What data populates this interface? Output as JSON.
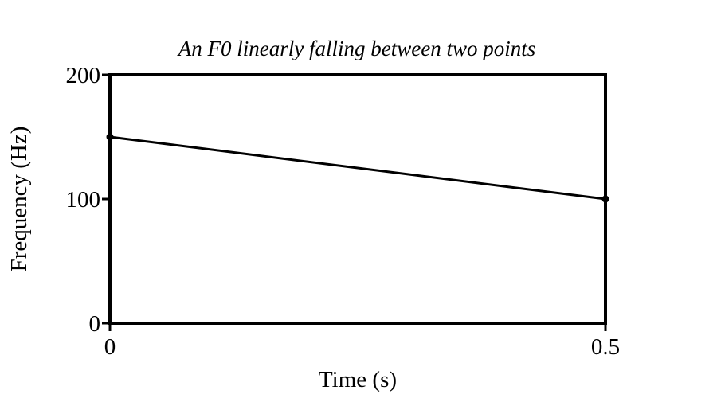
{
  "chart_data": {
    "type": "line",
    "title": "An F0 linearly falling between two points",
    "xlabel": "Time (s)",
    "ylabel": "Frequency (Hz)",
    "xlim": [
      0,
      0.5
    ],
    "ylim": [
      0,
      200
    ],
    "x_ticks": [
      {
        "value": 0,
        "label": "0"
      },
      {
        "value": 0.5,
        "label": "0.5"
      }
    ],
    "y_ticks": [
      {
        "value": 0,
        "label": "0"
      },
      {
        "value": 100,
        "label": "100"
      },
      {
        "value": 200,
        "label": "200"
      }
    ],
    "grid": false,
    "legend": "none",
    "series": [
      {
        "x": [
          0,
          0.5
        ],
        "y": [
          150,
          100
        ],
        "color": "#000000",
        "markers": true
      }
    ]
  }
}
